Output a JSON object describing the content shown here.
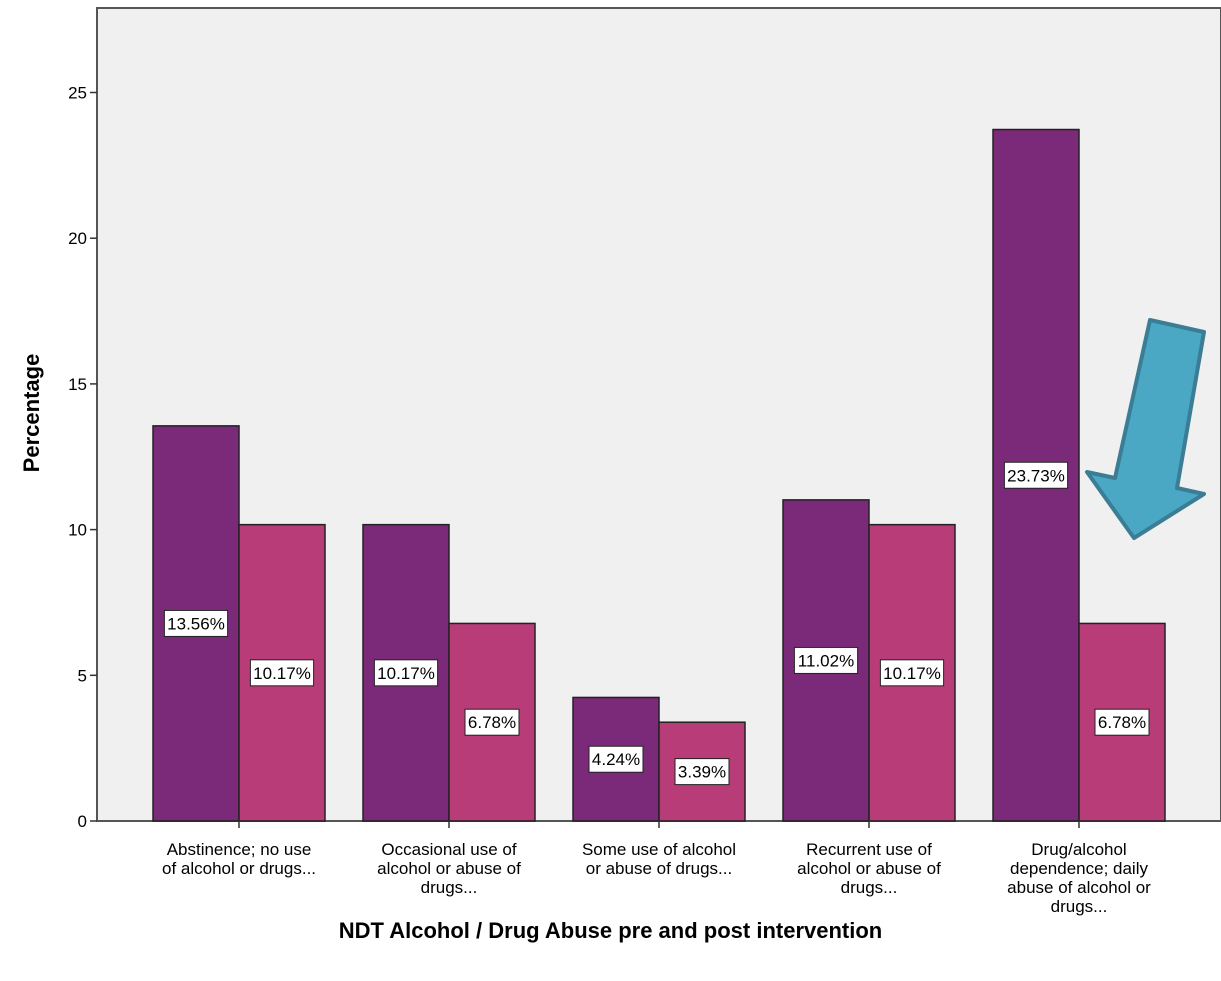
{
  "chart_data": {
    "type": "bar",
    "title": "",
    "xlabel": "NDT Alcohol / Drug Abuse pre and post intervention",
    "ylabel": "Percentage",
    "ylim": [
      0,
      27.9
    ],
    "yticks": [
      0,
      5,
      10,
      15,
      20,
      25
    ],
    "grid": false,
    "legend": "none",
    "categories": [
      [
        "Abstinence; no use",
        "of alcohol or drugs..."
      ],
      [
        "Occasional use of",
        "alcohol or abuse of",
        "drugs..."
      ],
      [
        "Some use of alcohol",
        "or abuse of drugs..."
      ],
      [
        "Recurrent use of",
        "alcohol or abuse of",
        "drugs..."
      ],
      [
        "Drug/alcohol",
        "dependence; daily",
        "abuse of alcohol or",
        "drugs..."
      ]
    ],
    "series": [
      {
        "color": "#7b2a7a",
        "values": [
          13.56,
          10.17,
          4.24,
          11.02,
          23.73
        ],
        "labels": [
          "13.56%",
          "10.17%",
          "4.24%",
          "11.02%",
          "23.73%"
        ]
      },
      {
        "color": "#b83c78",
        "values": [
          10.17,
          6.78,
          3.39,
          10.17,
          6.78
        ],
        "labels": [
          "10.17%",
          "6.78%",
          "3.39%",
          "10.17%",
          "6.78%"
        ]
      }
    ],
    "plot_background": "#f0f0f0",
    "annotation": {
      "shape": "arrow",
      "pointing_to": "Drug/alcohol dependence post-intervention bar",
      "color": "#4aa8c4",
      "stroke": "#3a7d94"
    }
  }
}
